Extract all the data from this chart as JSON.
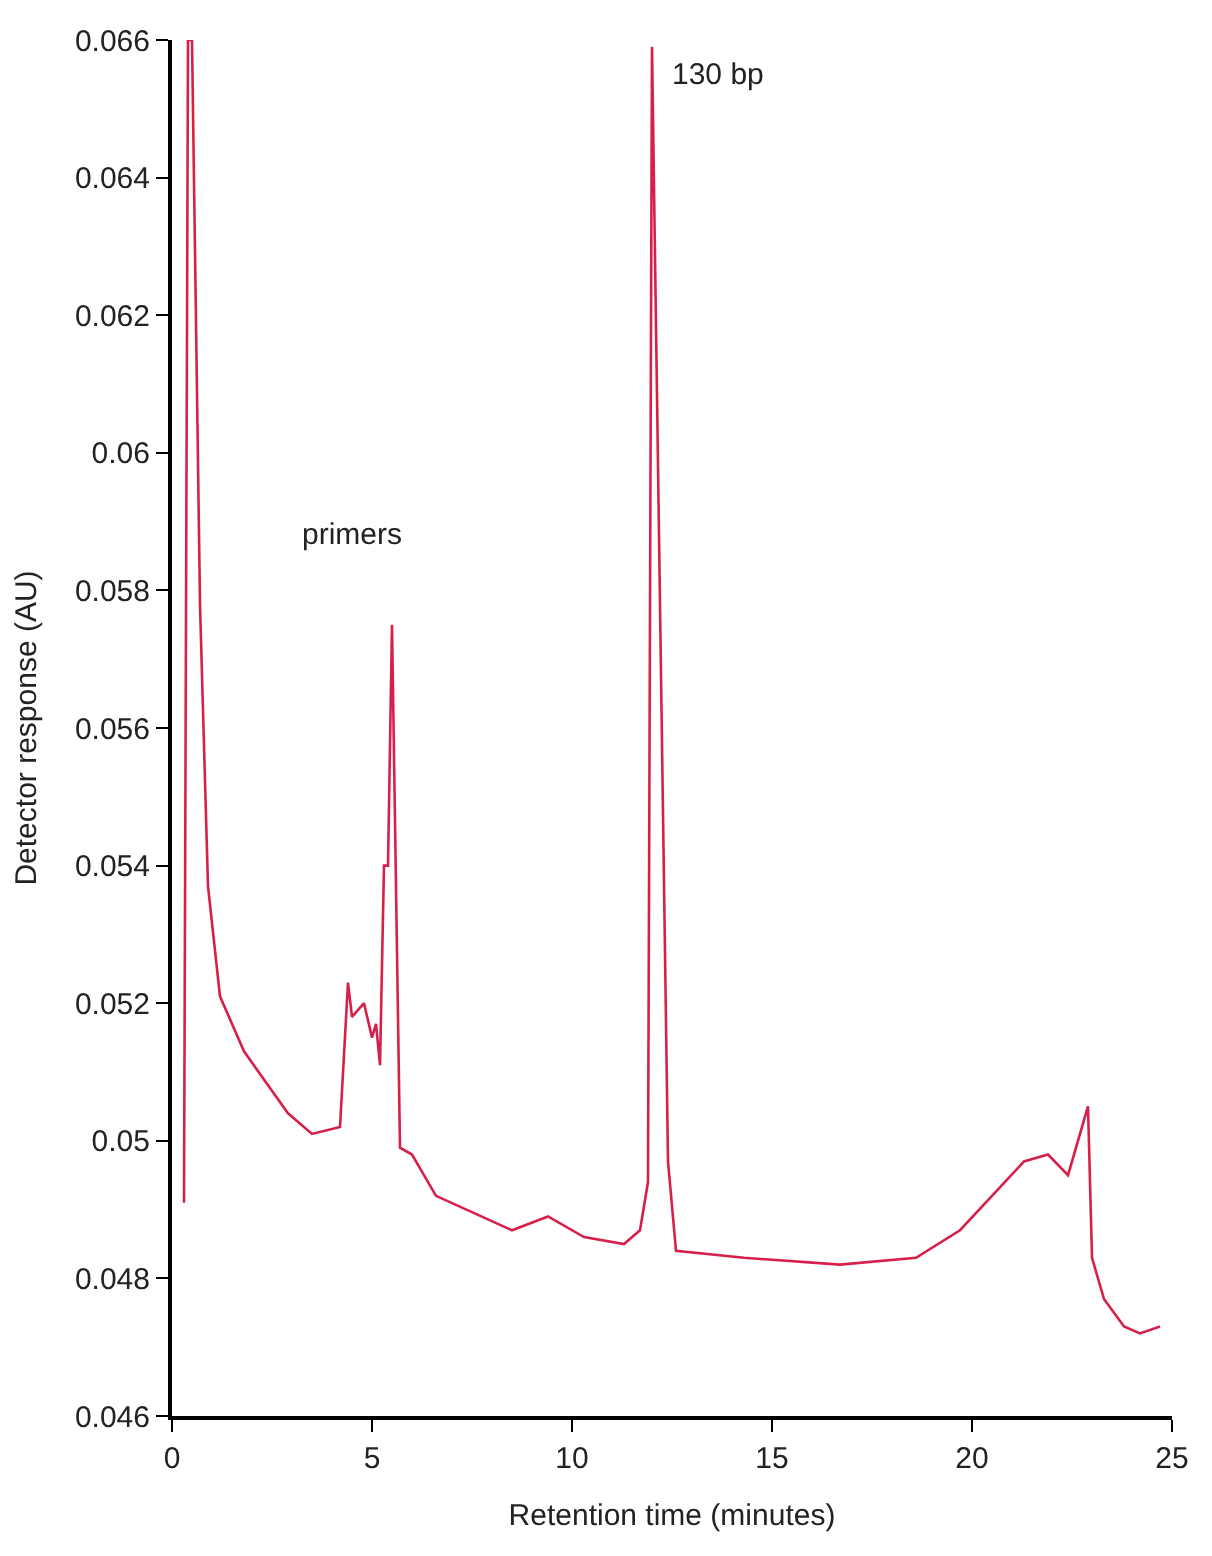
{
  "chart_data": {
    "type": "line",
    "xlabel": "Retention time (minutes)",
    "ylabel": "Detector response (AU)",
    "xlim": [
      0,
      25
    ],
    "xticks": [
      0,
      5,
      10,
      15,
      20,
      25
    ],
    "ylim": [
      0.046,
      0.066
    ],
    "yticks": [
      0.046,
      0.048,
      0.05,
      0.052,
      0.054,
      0.056,
      0.058,
      0.06,
      0.062,
      0.064,
      0.066
    ],
    "marker": "none",
    "line_style": "solid",
    "annotations": [
      {
        "text": "primers",
        "x": 5.5,
        "y": 0.0575
      },
      {
        "text": "130 bp",
        "x": 12.0,
        "y": 0.0659
      }
    ],
    "series": [
      {
        "color": "#d6204a",
        "x": [
          0.3,
          0.4,
          0.5,
          0.7,
          0.9,
          1.2,
          1.8,
          2.9,
          3.5,
          4.2,
          4.4,
          4.5,
          4.8,
          5.0,
          5.1,
          5.2,
          5.3,
          5.4,
          5.5,
          5.7,
          6.0,
          6.6,
          8.5,
          9.4,
          10.3,
          11.3,
          11.7,
          11.9,
          12.0,
          12.4,
          12.6,
          14.3,
          16.7,
          18.6,
          19.7,
          20.5,
          21.3,
          21.9,
          22.4,
          22.9,
          23.0,
          23.3,
          23.8,
          24.2,
          24.7
        ],
        "values": [
          0.0491,
          0.066,
          0.066,
          0.0578,
          0.0537,
          0.0521,
          0.0513,
          0.0504,
          0.0501,
          0.0502,
          0.0523,
          0.0518,
          0.052,
          0.0515,
          0.0517,
          0.0511,
          0.054,
          0.054,
          0.0575,
          0.0499,
          0.0498,
          0.0492,
          0.0487,
          0.0489,
          0.0486,
          0.0485,
          0.0487,
          0.0494,
          0.0659,
          0.0497,
          0.0484,
          0.0483,
          0.0482,
          0.0483,
          0.0487,
          0.0492,
          0.0497,
          0.0498,
          0.0495,
          0.0505,
          0.0483,
          0.0477,
          0.0473,
          0.0472,
          0.0473
        ]
      }
    ]
  }
}
